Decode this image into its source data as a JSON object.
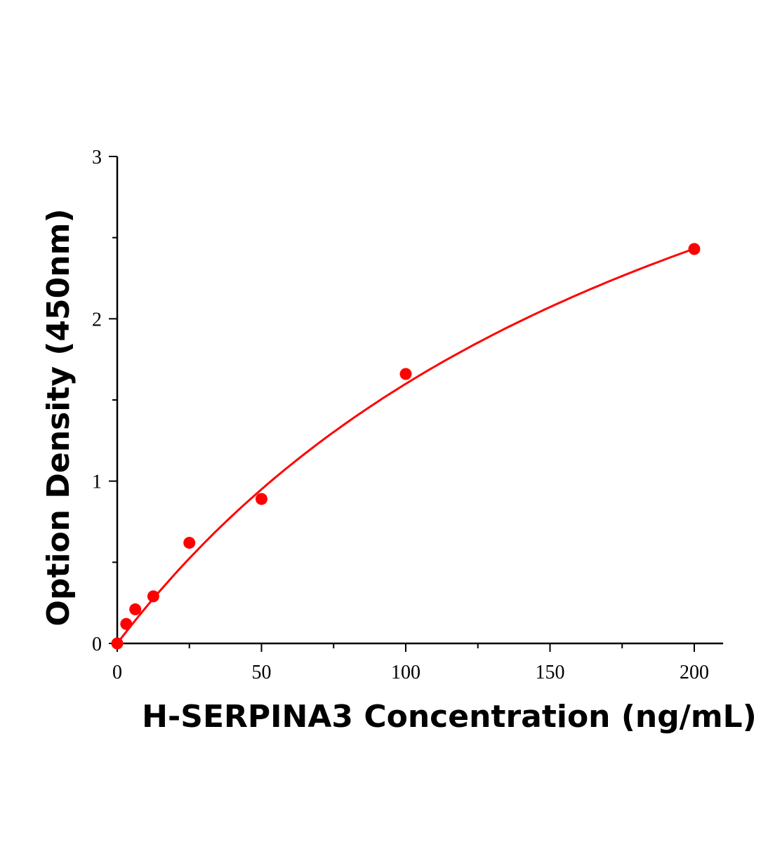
{
  "chart_data": {
    "type": "scatter",
    "title": "",
    "xlabel": "H-SERPINA3 Concentration (ng/mL)",
    "ylabel": "Option Density (450nm)",
    "xlim": [
      0,
      210
    ],
    "ylim": [
      0,
      3
    ],
    "x_ticks": [
      "0",
      "50",
      "100",
      "150",
      "200"
    ],
    "y_ticks": [
      "0",
      "1",
      "2",
      "3"
    ],
    "grid": false,
    "legend": "none",
    "series": [
      {
        "x": [
          0,
          3.125,
          6.25,
          12.5,
          25,
          50,
          100,
          200
        ],
        "y": [
          0.0,
          0.12,
          0.21,
          0.29,
          0.62,
          0.89,
          1.66,
          2.43
        ],
        "color": "#ff0000",
        "marker": "circle",
        "fit_line": true
      }
    ]
  }
}
